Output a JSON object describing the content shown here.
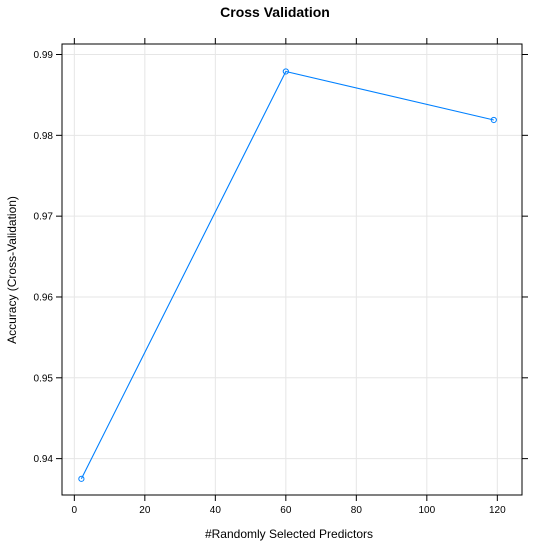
{
  "chart_data": {
    "type": "line",
    "title": "Cross Validation",
    "xlabel": "#Randomly Selected Predictors",
    "ylabel": "Accuracy (Cross-Validation)",
    "xlim": [
      -3.5,
      127
    ],
    "ylim": [
      0.9355,
      0.9913
    ],
    "xticks": [
      0,
      20,
      40,
      60,
      80,
      100,
      120
    ],
    "yticks": [
      0.94,
      0.95,
      0.96,
      0.97,
      0.98,
      0.99
    ],
    "xtick_labels": [
      "0",
      "20",
      "40",
      "60",
      "80",
      "100",
      "120"
    ],
    "ytick_labels": [
      "0.94",
      "0.95",
      "0.96",
      "0.97",
      "0.98",
      "0.99"
    ],
    "grid": true,
    "series": [
      {
        "x": [
          2,
          60,
          119
        ],
        "y": [
          0.9375,
          0.9879,
          0.9819
        ],
        "color": "#0080ff",
        "marker": "open-circle"
      }
    ]
  }
}
